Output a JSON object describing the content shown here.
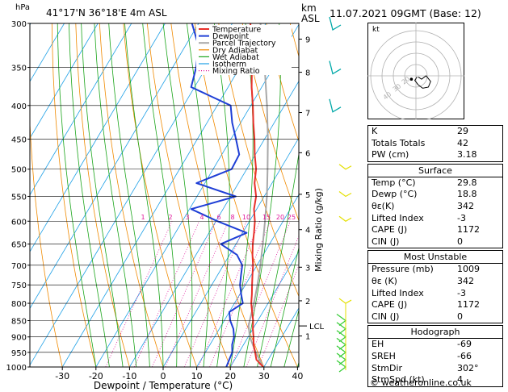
{
  "header": {
    "location": "41°17'N  36°18'E  4m  ASL",
    "hpa_label": "hPa",
    "km_label": "km",
    "asl_label": "ASL",
    "datetime": "11.07.2021  09GMT  (Base: 12)"
  },
  "legend": [
    "Temperature",
    "Dewpoint",
    "Parcel Trajectory",
    "Dry Adiabat",
    "Wet Adiabat",
    "Isotherm",
    "Mixing Ratio"
  ],
  "colors": {
    "temperature": "#e8302a",
    "dewpoint": "#1f3fd6",
    "parcel": "#a8a8a8",
    "dry_adiabat": "#f08a00",
    "wet_adiabat": "#1aa51a",
    "isotherm": "#1ea0e6",
    "mixing_ratio": "#e0189c",
    "wind": "#00a8a8"
  },
  "chart_data": {
    "type": "line",
    "title": "Skew-T log-P diagram",
    "xlabel": "Dewpoint / Temperature (°C)",
    "ylabel_left": "hPa",
    "ylabel_right": "Mixing Ratio (g/kg)",
    "xlim": [
      -35,
      40
    ],
    "x_ticks": [
      -30,
      -20,
      -10,
      0,
      10,
      20,
      30,
      40
    ],
    "pressure_levels": [
      300,
      350,
      400,
      450,
      500,
      550,
      600,
      650,
      700,
      750,
      800,
      850,
      900,
      950,
      1000
    ],
    "km_ticks": [
      {
        "label": "9",
        "p": 317
      },
      {
        "label": "8",
        "p": 356
      },
      {
        "label": "7",
        "p": 410
      },
      {
        "label": "6",
        "p": 472
      },
      {
        "label": "5",
        "p": 546
      },
      {
        "label": "4",
        "p": 618
      },
      {
        "label": "3",
        "p": 705
      },
      {
        "label": "2",
        "p": 793
      },
      {
        "label": "1",
        "p": 897
      }
    ],
    "lcl": {
      "label": "LCL",
      "p": 866
    },
    "mixing_ratio_labels": [
      "1",
      "2",
      "3",
      "4",
      "6",
      "8",
      "10",
      "15",
      "20",
      "25"
    ],
    "series": [
      {
        "name": "Temperature",
        "points": [
          [
            1000,
            29.8
          ],
          [
            975,
            26.5
          ],
          [
            950,
            24.8
          ],
          [
            925,
            23.0
          ],
          [
            900,
            21.6
          ],
          [
            875,
            20.0
          ],
          [
            850,
            18.6
          ],
          [
            825,
            16.8
          ],
          [
            800,
            15.0
          ],
          [
            775,
            13.6
          ],
          [
            750,
            12.0
          ],
          [
            725,
            10.4
          ],
          [
            700,
            8.8
          ],
          [
            675,
            6.8
          ],
          [
            650,
            5.0
          ],
          [
            625,
            3.4
          ],
          [
            600,
            1.6
          ],
          [
            575,
            -0.8
          ],
          [
            550,
            -2.4
          ],
          [
            525,
            -5.2
          ],
          [
            500,
            -7.2
          ],
          [
            475,
            -10.2
          ],
          [
            450,
            -13.0
          ],
          [
            425,
            -16.2
          ],
          [
            400,
            -19.4
          ],
          [
            375,
            -23.0
          ],
          [
            350,
            -26.4
          ],
          [
            325,
            -30.4
          ],
          [
            300,
            -34.6
          ]
        ]
      },
      {
        "name": "Dewpoint",
        "points": [
          [
            1000,
            18.8
          ],
          [
            975,
            18.4
          ],
          [
            950,
            18.0
          ],
          [
            925,
            16.6
          ],
          [
            900,
            15.8
          ],
          [
            875,
            14.2
          ],
          [
            850,
            11.8
          ],
          [
            825,
            10.0
          ],
          [
            800,
            12.5
          ],
          [
            775,
            10.4
          ],
          [
            750,
            8.4
          ],
          [
            725,
            7.0
          ],
          [
            700,
            5.6
          ],
          [
            675,
            2.2
          ],
          [
            650,
            -4.5
          ],
          [
            625,
            1.2
          ],
          [
            600,
            -9.5
          ],
          [
            575,
            -19.5
          ],
          [
            550,
            -8.5
          ],
          [
            525,
            -22.5
          ],
          [
            500,
            -14.5
          ],
          [
            475,
            -14.8
          ],
          [
            450,
            -18.5
          ],
          [
            425,
            -22.5
          ],
          [
            400,
            -26.0
          ],
          [
            375,
            -41.0
          ],
          [
            350,
            -43.0
          ],
          [
            325,
            -46.0
          ],
          [
            300,
            -52.0
          ]
        ]
      },
      {
        "name": "Parcel Trajectory",
        "points": [
          [
            1000,
            29.8
          ],
          [
            950,
            25.0
          ],
          [
            900,
            20.5
          ],
          [
            866,
            18.2
          ],
          [
            850,
            17.6
          ],
          [
            800,
            15.8
          ],
          [
            750,
            13.6
          ],
          [
            700,
            11.0
          ],
          [
            650,
            8.0
          ],
          [
            600,
            4.6
          ],
          [
            550,
            0.8
          ],
          [
            500,
            -3.8
          ],
          [
            450,
            -9.0
          ],
          [
            400,
            -15.2
          ],
          [
            350,
            -22.6
          ],
          [
            300,
            -31.6
          ]
        ]
      }
    ]
  },
  "winds": [
    {
      "p": 300,
      "kind": "cyan"
    },
    {
      "p": 350,
      "kind": "cyan"
    },
    {
      "p": 400,
      "kind": "cyan"
    },
    {
      "p": 500,
      "kind": "yellow"
    },
    {
      "p": 550,
      "kind": "yellow"
    },
    {
      "p": 600,
      "kind": "yellow"
    },
    {
      "p": 800,
      "kind": "yellow"
    },
    {
      "p": 850,
      "kind": "green"
    },
    {
      "p": 875,
      "kind": "green"
    },
    {
      "p": 900,
      "kind": "green"
    },
    {
      "p": 925,
      "kind": "green"
    },
    {
      "p": 950,
      "kind": "green"
    },
    {
      "p": 975,
      "kind": "green"
    },
    {
      "p": 1000,
      "kind": "green"
    }
  ],
  "hodograph": {
    "label": "kt",
    "ring_labels": [
      "40",
      "30",
      "20"
    ],
    "trace": [
      [
        2,
        -1
      ],
      [
        5,
        -3
      ],
      [
        9,
        0
      ],
      [
        13,
        -5
      ],
      [
        11,
        -10
      ],
      [
        6,
        -11
      ],
      [
        2,
        -8
      ],
      [
        -1,
        -4
      ],
      [
        1,
        -1
      ]
    ],
    "storm_marker": [
      -4,
      -3
    ]
  },
  "indices": {
    "general": [
      {
        "label": "K",
        "value": "29"
      },
      {
        "label": "Totals Totals",
        "value": "42"
      },
      {
        "label": "PW (cm)",
        "value": "3.18"
      }
    ],
    "surface": {
      "title": "Surface",
      "rows": [
        {
          "label": "Temp (°C)",
          "value": "29.8"
        },
        {
          "label": "Dewp (°C)",
          "value": "18.8"
        },
        {
          "label": "θε(K)",
          "value": "342"
        },
        {
          "label": "Lifted Index",
          "value": "-3"
        },
        {
          "label": "CAPE (J)",
          "value": "1172"
        },
        {
          "label": "CIN (J)",
          "value": "0"
        }
      ]
    },
    "unstable": {
      "title": "Most Unstable",
      "rows": [
        {
          "label": "Pressure (mb)",
          "value": "1009"
        },
        {
          "label": "θε (K)",
          "value": "342"
        },
        {
          "label": "Lifted Index",
          "value": "-3"
        },
        {
          "label": "CAPE (J)",
          "value": "1172"
        },
        {
          "label": "CIN (J)",
          "value": "0"
        }
      ]
    },
    "hodograph_table": {
      "title": "Hodograph",
      "rows": [
        {
          "label": "EH",
          "value": "-69"
        },
        {
          "label": "SREH",
          "value": "-66"
        },
        {
          "label": "StmDir",
          "value": "302°"
        },
        {
          "label": "StmSpd (kt)",
          "value": "4"
        }
      ]
    }
  },
  "footer": "© weatheronline.co.uk"
}
